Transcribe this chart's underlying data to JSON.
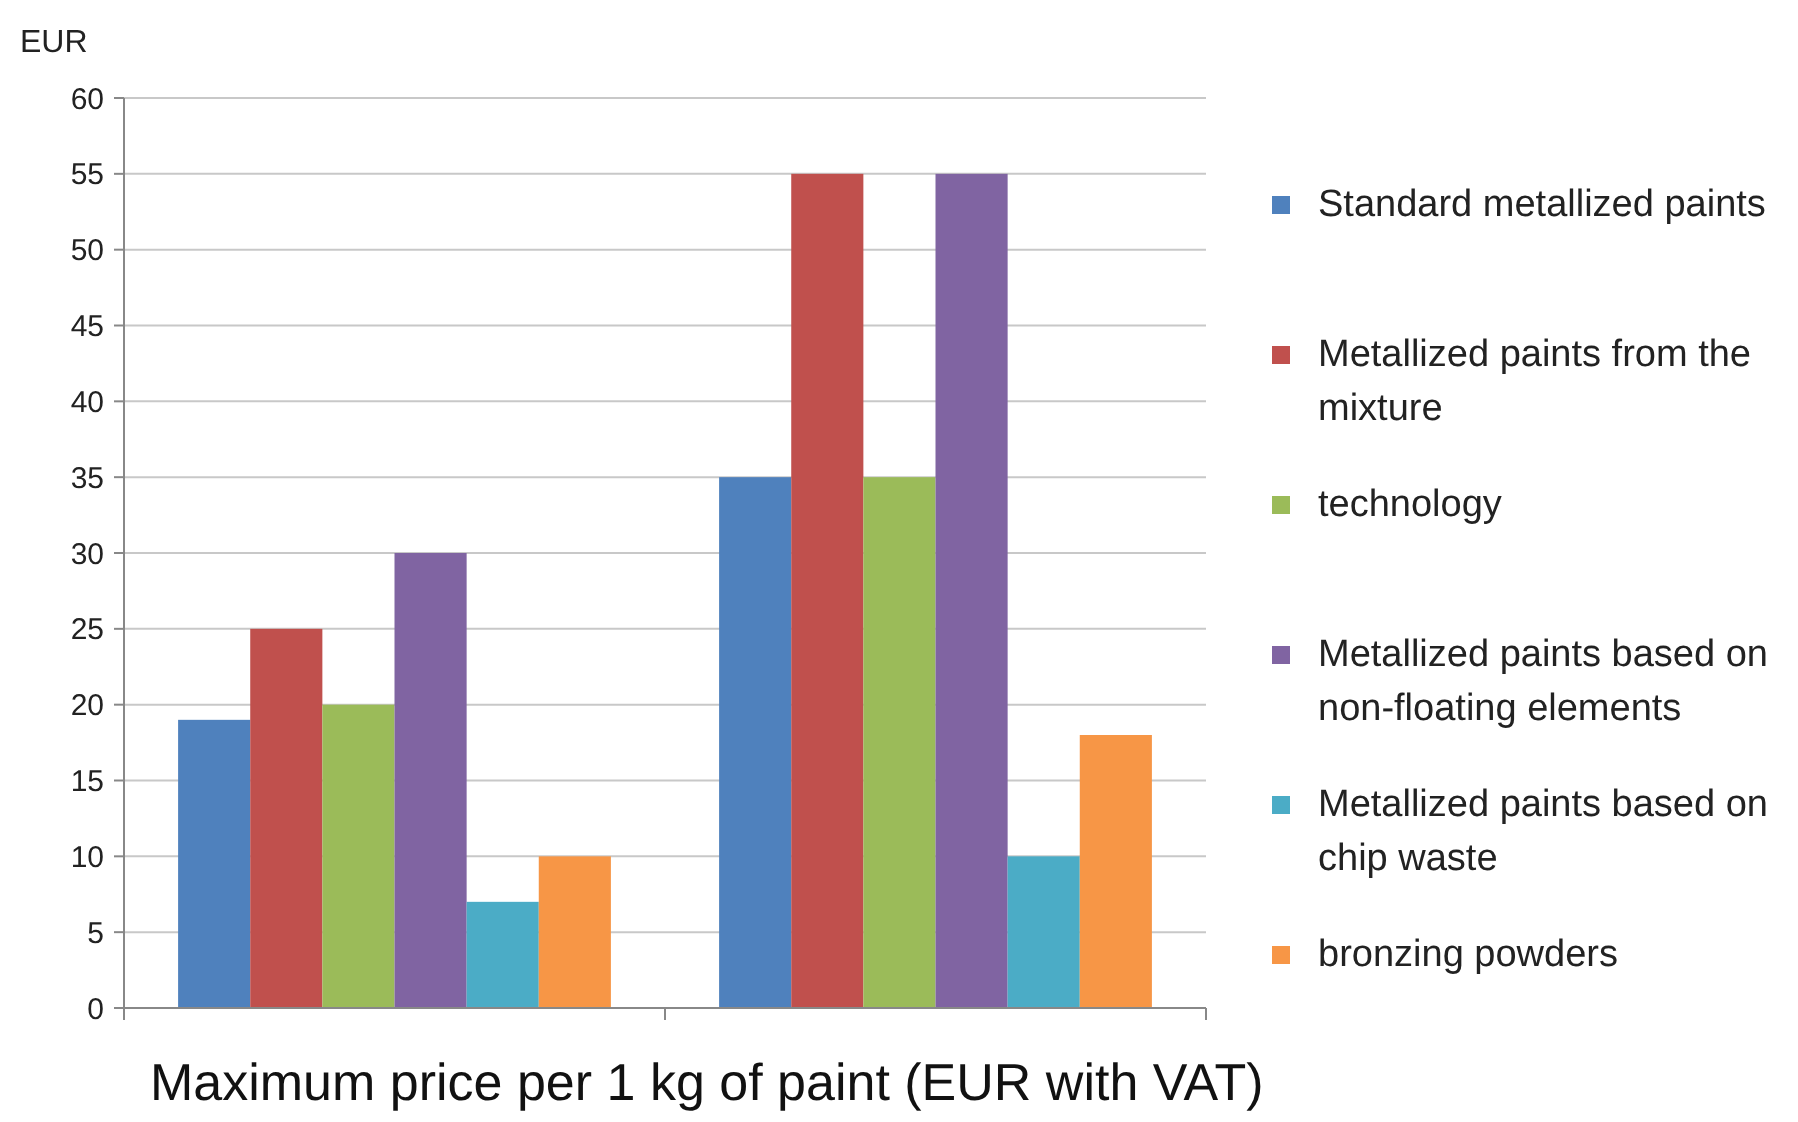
{
  "chart_data": {
    "type": "bar",
    "xlabel": "Maximum price per 1 kg of paint (EUR with VAT)",
    "ylabel": "EUR",
    "categories": [
      null,
      null
    ],
    "series": [
      {
        "name": "Standard metallized paints",
        "color": "#4f81bd",
        "values": [
          19,
          35
        ]
      },
      {
        "name": "Metallized paints from the mixture",
        "color": "#c0504d",
        "values": [
          25,
          55
        ]
      },
      {
        "name": "technology",
        "color": "#9bbb59",
        "values": [
          20,
          35
        ]
      },
      {
        "name": "Metallized paints based on non-floating elements",
        "color": "#8064a2",
        "values": [
          30,
          55
        ]
      },
      {
        "name": "Metallized paints based on chip waste",
        "color": "#4bacc6",
        "values": [
          7,
          10
        ]
      },
      {
        "name": "bronzing powders",
        "color": "#f79646",
        "values": [
          10,
          18
        ]
      }
    ],
    "ylim": [
      0,
      60
    ],
    "yticks": [
      0,
      5,
      10,
      15,
      20,
      25,
      30,
      35,
      40,
      45,
      50,
      55,
      60
    ],
    "grid": "y",
    "legend": "right"
  }
}
